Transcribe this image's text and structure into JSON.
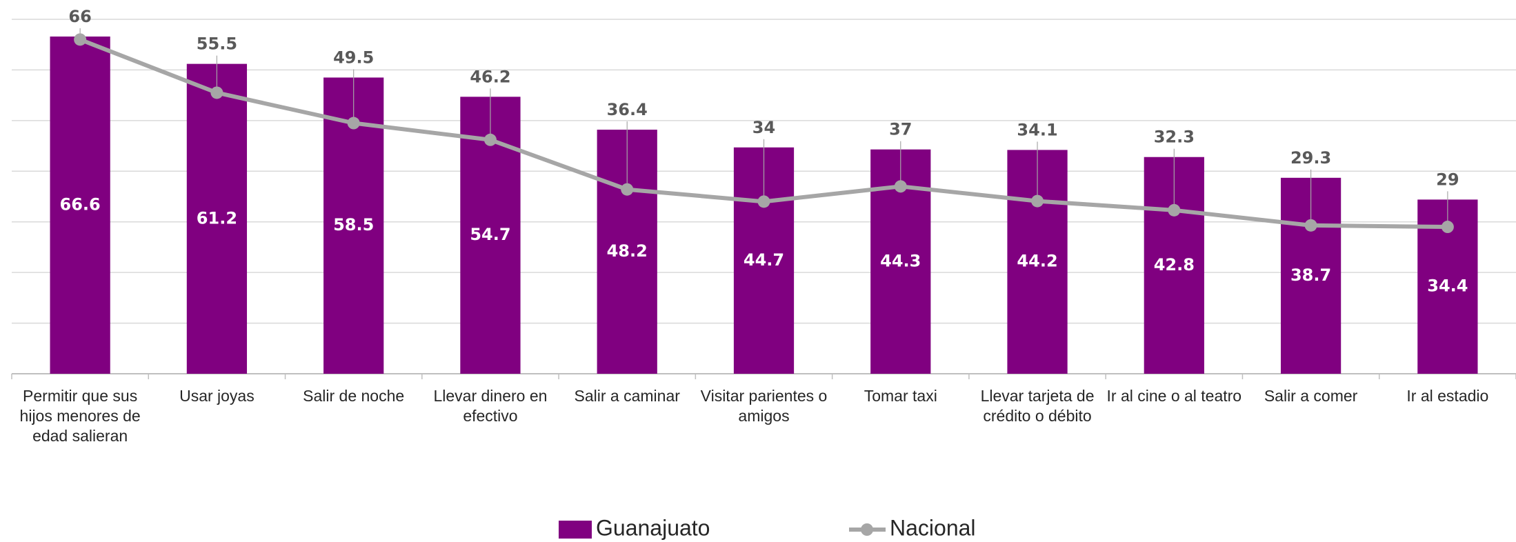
{
  "chart_data": {
    "type": "bar",
    "categories": [
      "Permitir que sus hijos menores de edad salieran",
      "Usar joyas",
      "Salir de noche",
      "Llevar dinero en efectivo",
      "Salir a caminar",
      "Visitar parientes o amigos",
      "Tomar taxi",
      "Llevar tarjeta de crédito o débito",
      "Ir al cine o al teatro",
      "Salir a comer",
      "Ir al estadio"
    ],
    "series": [
      {
        "name": "Guanajuato",
        "type": "bar",
        "color": "#800080",
        "values": [
          66.6,
          61.2,
          58.5,
          54.7,
          48.2,
          44.7,
          44.3,
          44.2,
          42.8,
          38.7,
          34.4
        ]
      },
      {
        "name": "Nacional",
        "type": "line",
        "color": "#a6a6a6",
        "values": [
          66.0,
          55.5,
          49.5,
          46.2,
          36.4,
          34.0,
          37.0,
          34.1,
          32.3,
          29.3,
          29.0
        ]
      }
    ],
    "ylim": [
      0,
      70
    ],
    "yticks": [
      0,
      10,
      20,
      30,
      40,
      50,
      60,
      70
    ],
    "grid": true,
    "legend": "bottom"
  }
}
